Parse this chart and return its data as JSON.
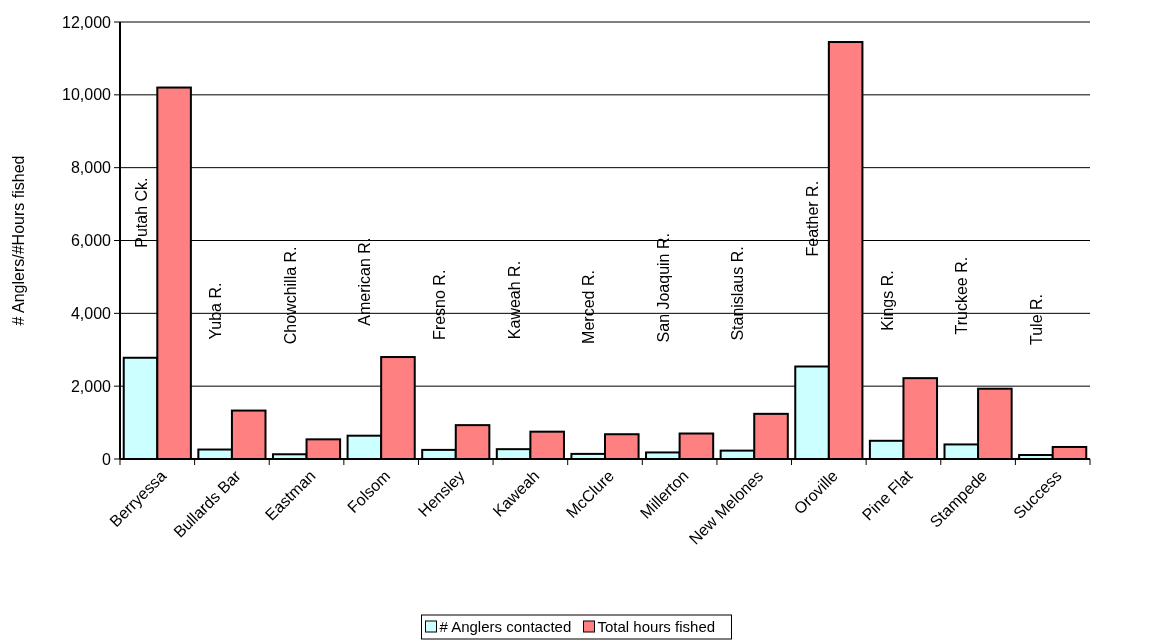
{
  "chart_data": {
    "type": "bar",
    "ylabel": "# Anglers/#Hours fished",
    "categories": [
      "Berryessa",
      "Bullards Bar",
      "Eastman",
      "Folsom",
      "Hensley",
      "Kaweah",
      "McClure",
      "Millerton",
      "New Melones",
      "Oroville",
      "Pine Flat",
      "Stampede",
      "Success"
    ],
    "series": [
      {
        "name": "# Anglers contacted",
        "color": "#ccffff",
        "values": [
          2780,
          260,
          130,
          640,
          250,
          270,
          140,
          180,
          230,
          2540,
          500,
          400,
          110
        ]
      },
      {
        "name": "Total hours fished",
        "color": "#ff8080",
        "values": [
          10200,
          1330,
          540,
          2800,
          930,
          750,
          680,
          700,
          1240,
          11450,
          2220,
          1930,
          330
        ]
      }
    ],
    "ylim": [
      0,
      12000
    ],
    "yticks": [
      {
        "value": 0,
        "label": "0"
      },
      {
        "value": 2000,
        "label": "2,000"
      },
      {
        "value": 4000,
        "label": "4,000"
      },
      {
        "value": 6000,
        "label": "6,000"
      },
      {
        "value": 8000,
        "label": "8,000"
      },
      {
        "value": 10000,
        "label": "10,000"
      },
      {
        "value": 12000,
        "label": "12,000"
      }
    ],
    "grid": "y",
    "legend": "bottom",
    "annotations": [
      "Putah Ck.",
      "Yuba R.",
      "Chowchilla R.",
      "American R.",
      "Fresno R.",
      "Kaweah R.",
      "Merced R.",
      "San Joaquin R.",
      "Stanislaus R.",
      "Feather R.",
      "Kings R.",
      "Truckee R.",
      "Tule R."
    ]
  }
}
